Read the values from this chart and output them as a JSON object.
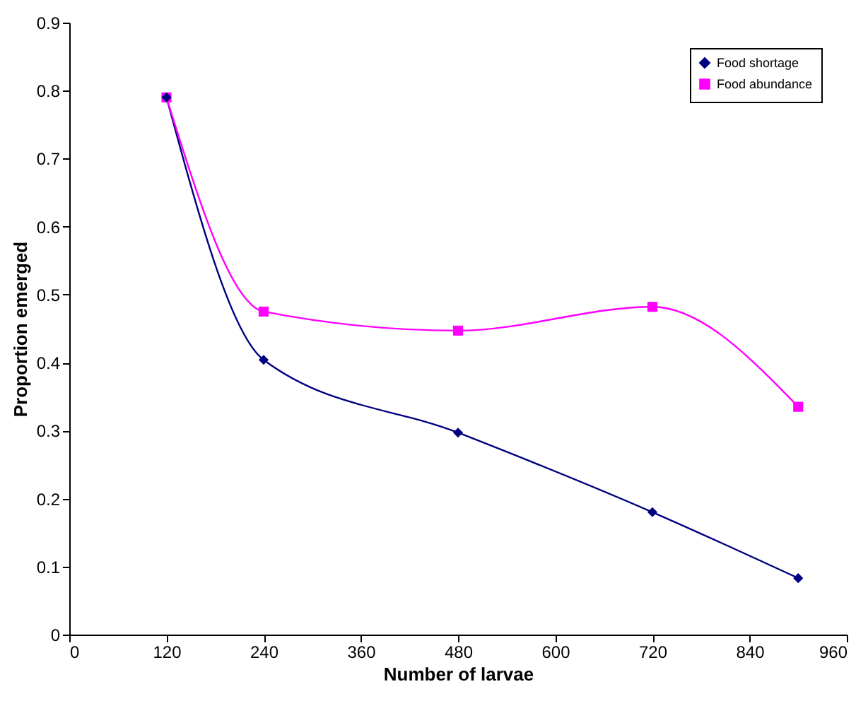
{
  "chart_data": {
    "type": "line",
    "xlabel": "Number of larvae",
    "ylabel": "Proportion emerged",
    "x": [
      120,
      240,
      480,
      720,
      900
    ],
    "series": [
      {
        "name": "Food shortage",
        "color": "#000080",
        "marker": "diamond",
        "values": [
          0.79,
          0.404,
          0.297,
          0.18,
          0.083
        ]
      },
      {
        "name": "Food abundance",
        "color": "#ff00ff",
        "marker": "square",
        "values": [
          0.79,
          0.475,
          0.447,
          0.482,
          0.335
        ]
      }
    ],
    "xlim": [
      0,
      960
    ],
    "xticks": [
      0,
      120,
      240,
      360,
      480,
      600,
      720,
      840,
      960
    ],
    "ylim": [
      0,
      0.9
    ],
    "yticks": [
      0,
      0.1,
      0.2,
      0.3,
      0.4,
      0.5,
      0.6,
      0.7,
      0.8,
      0.9
    ],
    "grid": false,
    "legend": "top right"
  }
}
